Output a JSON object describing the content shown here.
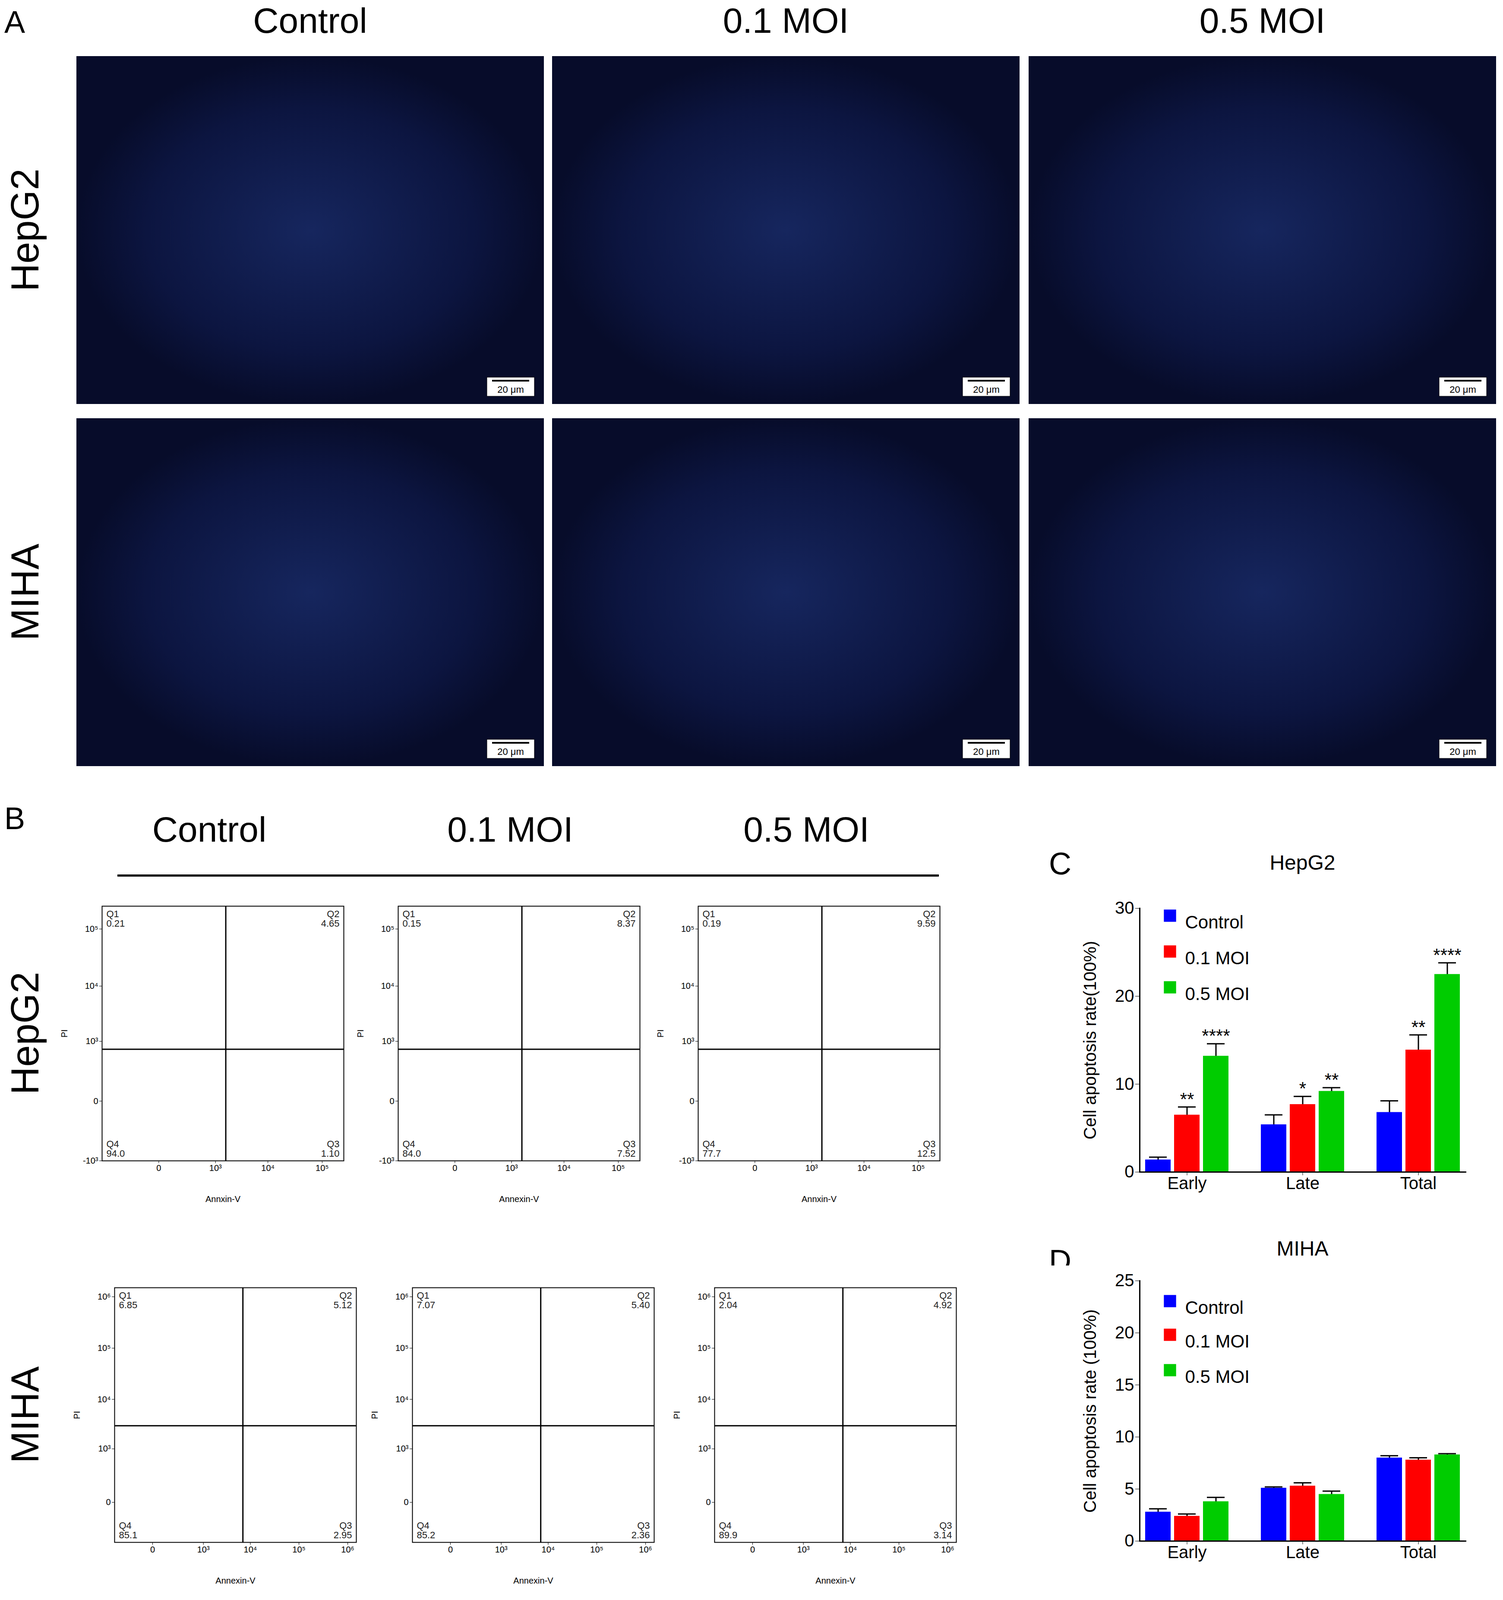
{
  "figure": {
    "panel_labels": [
      "A",
      "B",
      "C",
      "D"
    ],
    "micrographs": {
      "columns": [
        "Control",
        "0.1 MOI",
        "0.5 MOI"
      ],
      "rows": [
        "HepG2",
        "MIHA"
      ],
      "scale_bar": "20 μm"
    },
    "flow_header": {
      "columns": [
        "Control",
        "0.1 MOI",
        "0.5 MOI"
      ],
      "rows": [
        "HepG2",
        "MIHA"
      ]
    }
  },
  "chart_data": [
    {
      "type": "quadrant",
      "x_label": "Annxin-V",
      "y_label": "PI",
      "log": true,
      "xlim": [
        -1000,
        250000
      ],
      "ylim": [
        -1000,
        250000
      ],
      "xticks": [
        0,
        {
          "value": 1000,
          "label": "10³"
        },
        {
          "value": 10000,
          "label": "10⁴"
        },
        {
          "value": 100000,
          "label": "10⁵"
        }
      ],
      "yticks": [
        {
          "value": -1000,
          "label": "-10³"
        },
        0,
        {
          "value": 1000,
          "label": "10³"
        },
        {
          "value": 10000,
          "label": "10⁴"
        },
        {
          "value": 100000,
          "label": "10⁵"
        }
      ],
      "x_gate": 1600,
      "y_gate": 700,
      "quadrants": [
        "Q1",
        "Q2",
        "Q3",
        "Q4"
      ],
      "values": [
        0.21,
        4.65,
        1.1,
        94.0
      ],
      "value_labels": [
        "0.21",
        "4.65",
        "1.10",
        "94.0"
      ]
    },
    {
      "type": "quadrant",
      "x_label": "Annexin-V",
      "y_label": "PI",
      "log": true,
      "xlim": [
        -1000,
        250000
      ],
      "ylim": [
        -1000,
        250000
      ],
      "xticks": [
        0,
        {
          "value": 1000,
          "label": "10³"
        },
        {
          "value": 10000,
          "label": "10⁴"
        },
        {
          "value": 100000,
          "label": "10⁵"
        }
      ],
      "yticks": [
        {
          "value": -1000,
          "label": "-10³"
        },
        0,
        {
          "value": 1000,
          "label": "10³"
        },
        {
          "value": 10000,
          "label": "10⁴"
        },
        {
          "value": 100000,
          "label": "10⁵"
        }
      ],
      "x_gate": 1600,
      "y_gate": 700,
      "quadrants": [
        "Q1",
        "Q2",
        "Q3",
        "Q4"
      ],
      "values": [
        0.15,
        8.37,
        7.52,
        84.0
      ],
      "value_labels": [
        "0.15",
        "8.37",
        "7.52",
        "84.0"
      ]
    },
    {
      "type": "quadrant",
      "x_label": "Annxin-V",
      "y_label": "PI",
      "log": true,
      "xlim": [
        -1000,
        250000
      ],
      "ylim": [
        -1000,
        250000
      ],
      "xticks": [
        0,
        {
          "value": 1000,
          "label": "10³"
        },
        {
          "value": 10000,
          "label": "10⁴"
        },
        {
          "value": 100000,
          "label": "10⁵"
        }
      ],
      "yticks": [
        {
          "value": -1000,
          "label": "-10³"
        },
        0,
        {
          "value": 1000,
          "label": "10³"
        },
        {
          "value": 10000,
          "label": "10⁴"
        },
        {
          "value": 100000,
          "label": "10⁵"
        }
      ],
      "x_gate": 1600,
      "y_gate": 700,
      "quadrants": [
        "Q1",
        "Q2",
        "Q3",
        "Q4"
      ],
      "values": [
        0.19,
        9.59,
        12.5,
        77.7
      ],
      "value_labels": [
        "0.19",
        "9.59",
        "12.5",
        "77.7"
      ]
    },
    {
      "type": "quadrant",
      "x_label": "Annexin-V",
      "y_label": "PI",
      "log": true,
      "xlim": [
        -500,
        1500000
      ],
      "ylim": [
        -500,
        1500000
      ],
      "xticks": [
        0,
        {
          "value": 1000,
          "label": "10³"
        },
        {
          "value": 10000,
          "label": "10⁴"
        },
        {
          "value": 100000,
          "label": "10⁵"
        },
        {
          "value": 1000000,
          "label": "10⁶"
        }
      ],
      "yticks": [
        0,
        {
          "value": 1000,
          "label": "10³"
        },
        {
          "value": 10000,
          "label": "10⁴"
        },
        {
          "value": 100000,
          "label": "10⁵"
        },
        {
          "value": 1000000,
          "label": "10⁶"
        }
      ],
      "x_gate": 7000,
      "y_gate": 3000,
      "quadrants": [
        "Q1",
        "Q2",
        "Q3",
        "Q4"
      ],
      "values": [
        6.85,
        5.12,
        2.95,
        85.1
      ],
      "value_labels": [
        "6.85",
        "5.12",
        "2.95",
        "85.1"
      ]
    },
    {
      "type": "quadrant",
      "x_label": "Annexin-V",
      "y_label": "PI",
      "log": true,
      "xlim": [
        -500,
        1500000
      ],
      "ylim": [
        -500,
        1500000
      ],
      "xticks": [
        0,
        {
          "value": 1000,
          "label": "10³"
        },
        {
          "value": 10000,
          "label": "10⁴"
        },
        {
          "value": 100000,
          "label": "10⁵"
        },
        {
          "value": 1000000,
          "label": "10⁶"
        }
      ],
      "yticks": [
        0,
        {
          "value": 1000,
          "label": "10³"
        },
        {
          "value": 10000,
          "label": "10⁴"
        },
        {
          "value": 100000,
          "label": "10⁵"
        },
        {
          "value": 1000000,
          "label": "10⁶"
        }
      ],
      "x_gate": 7000,
      "y_gate": 3000,
      "quadrants": [
        "Q1",
        "Q2",
        "Q3",
        "Q4"
      ],
      "values": [
        7.07,
        5.4,
        2.36,
        85.2
      ],
      "value_labels": [
        "7.07",
        "5.40",
        "2.36",
        "85.2"
      ]
    },
    {
      "type": "quadrant",
      "x_label": "Annexin-V",
      "y_label": "PI",
      "log": true,
      "xlim": [
        -500,
        1500000
      ],
      "ylim": [
        -500,
        1500000
      ],
      "xticks": [
        0,
        {
          "value": 1000,
          "label": "10³"
        },
        {
          "value": 10000,
          "label": "10⁴"
        },
        {
          "value": 100000,
          "label": "10⁵"
        },
        {
          "value": 1000000,
          "label": "10⁶"
        }
      ],
      "yticks": [
        0,
        {
          "value": 1000,
          "label": "10³"
        },
        {
          "value": 10000,
          "label": "10⁴"
        },
        {
          "value": 100000,
          "label": "10⁵"
        },
        {
          "value": 1000000,
          "label": "10⁶"
        }
      ],
      "x_gate": 7000,
      "y_gate": 3000,
      "quadrants": [
        "Q1",
        "Q2",
        "Q3",
        "Q4"
      ],
      "values": [
        2.04,
        4.92,
        3.14,
        89.9
      ],
      "value_labels": [
        "2.04",
        "4.92",
        "3.14",
        "89.9"
      ]
    },
    {
      "type": "bar",
      "title": "HepG2",
      "y_label": "Cell apoptosis rate(100%)",
      "categories": [
        "Early",
        "Late",
        "Total"
      ],
      "series": [
        {
          "name": "Control",
          "color": "#0000ff",
          "values": [
            1.4,
            5.4,
            6.8
          ],
          "errors": [
            0.3,
            1.1,
            1.3
          ]
        },
        {
          "name": "0.1 MOI",
          "color": "#ff0000",
          "values": [
            6.5,
            7.7,
            13.9
          ],
          "errors": [
            0.9,
            0.9,
            1.7
          ],
          "significance": [
            "**",
            "*",
            "**"
          ]
        },
        {
          "name": "0.5 MOI",
          "color": "#00cc00",
          "values": [
            13.2,
            9.2,
            22.5
          ],
          "errors": [
            1.4,
            0.4,
            1.3
          ],
          "significance": [
            "****",
            "**",
            "****"
          ]
        }
      ],
      "ylim": [
        0,
        30
      ],
      "yticks": [
        0,
        10,
        20,
        30
      ],
      "legend": "top-left"
    },
    {
      "type": "bar",
      "title": "MIHA",
      "y_label": "Cell apoptosis rate (100%)",
      "categories": [
        "Early",
        "Late",
        "Total"
      ],
      "series": [
        {
          "name": "Control",
          "color": "#0000ff",
          "values": [
            2.8,
            5.1,
            8.0
          ],
          "errors": [
            0.3,
            0.1,
            0.2
          ]
        },
        {
          "name": "0.1 MOI",
          "color": "#ff0000",
          "values": [
            2.4,
            5.3,
            7.8
          ],
          "errors": [
            0.2,
            0.3,
            0.2
          ]
        },
        {
          "name": "0.5 MOI",
          "color": "#00cc00",
          "values": [
            3.8,
            4.5,
            8.3
          ],
          "errors": [
            0.4,
            0.3,
            0.1
          ]
        }
      ],
      "ylim": [
        0,
        25
      ],
      "yticks": [
        0,
        5,
        10,
        15,
        20,
        25
      ],
      "legend": "top-left"
    }
  ]
}
